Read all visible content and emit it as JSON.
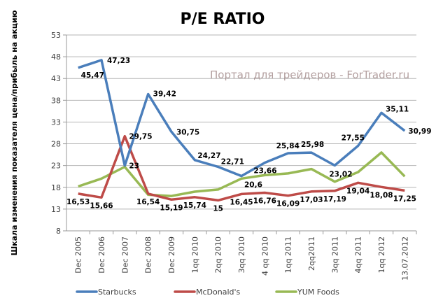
{
  "chart_data": {
    "type": "line",
    "title": "P/E RATIO",
    "ylabel": "Шкала изменения показателя цена/прибыль на акцию",
    "xlabel": "",
    "ylim": [
      8,
      53
    ],
    "yticks": [
      8,
      13,
      18,
      23,
      28,
      33,
      38,
      43,
      48,
      53
    ],
    "grid": true,
    "legend": "bottom",
    "watermark": "Портал для трейдеров - ForTrader.ru",
    "categories": [
      "Dec 2005",
      "Dec 2006",
      "Dec 2007",
      "Dec 2008",
      "Dec 2009",
      "1qq 2010",
      "2qq 2010",
      "3qq 2010",
      "4 qq 2010",
      "1qq 2011",
      "2qq2011",
      "3qq 2011",
      "4qq 2011",
      "1qq 2012",
      "13.07.2012"
    ],
    "series": [
      {
        "name": "Starbucks",
        "color": "#4a7ebb",
        "values": [
          45.47,
          47.23,
          23,
          39.42,
          30.75,
          24.27,
          22.71,
          20.6,
          23.66,
          25.84,
          25.98,
          23.02,
          27.55,
          35.11,
          30.99
        ],
        "labels": [
          "45,47",
          "47,23",
          "23",
          "39,42",
          "30,75",
          "24,27",
          "22,71",
          "20,6",
          "23,66",
          "25,84",
          "25,98",
          "23,02",
          "27,55",
          "35,11",
          "30,99"
        ]
      },
      {
        "name": "McDonald's",
        "color": "#be4b48",
        "values": [
          16.53,
          15.66,
          29.75,
          16.54,
          15.19,
          15.74,
          15,
          16.45,
          16.76,
          16.09,
          17.03,
          17.19,
          19.04,
          18.08,
          17.25
        ],
        "labels": [
          "16,53",
          "15,66",
          "29,75",
          "16,54",
          "15,19",
          "15,74",
          "15",
          "16,45",
          "16,76",
          "16,09",
          "17,03",
          "17,19",
          "19,04",
          "18,08",
          "17,25"
        ]
      },
      {
        "name": "YUM Foods",
        "color": "#98b954",
        "values": [
          18.2,
          20.0,
          22.7,
          16.3,
          16.0,
          17.0,
          17.5,
          20.0,
          20.8,
          21.2,
          22.2,
          19.3,
          21.5,
          26.0,
          20.5
        ],
        "labels": []
      }
    ]
  }
}
